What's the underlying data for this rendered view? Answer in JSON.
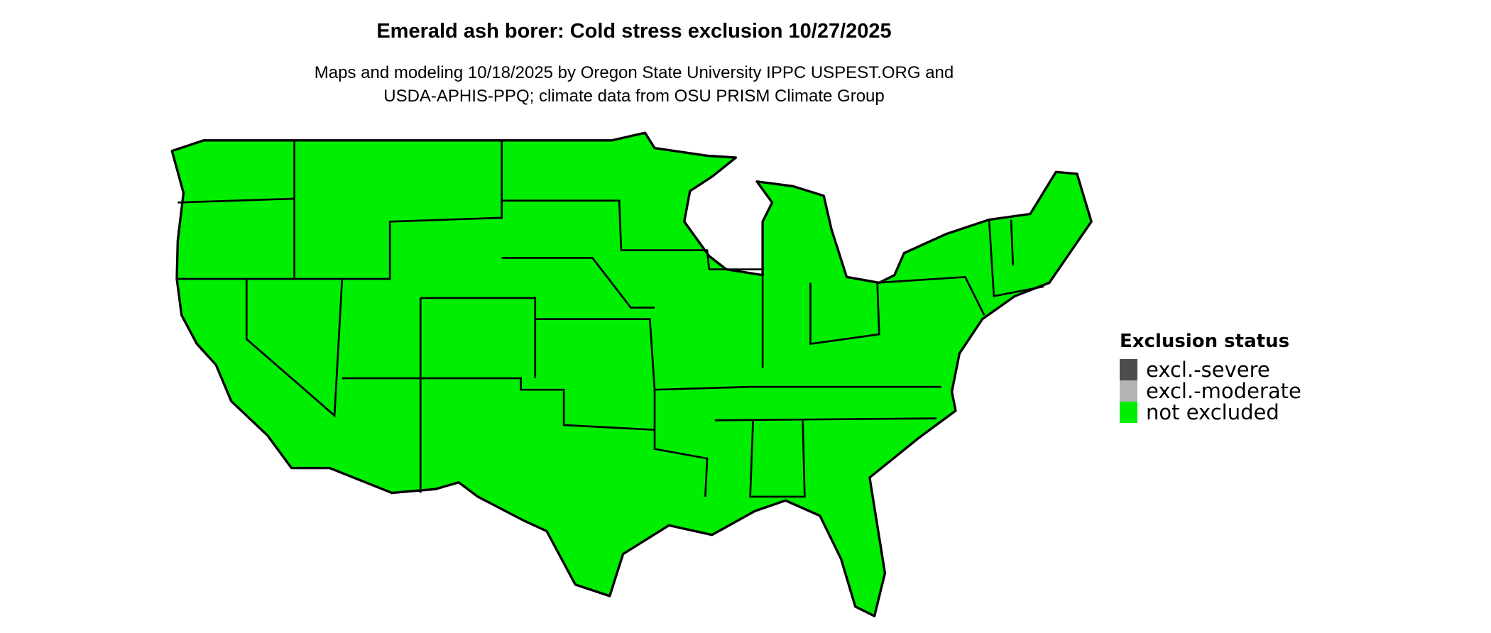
{
  "title": "Emerald ash borer: Cold stress exclusion 10/27/2025",
  "subtitle_lines": [
    "Maps and modeling 10/18/2025 by Oregon State University IPPC USPEST.ORG and",
    "USDA-APHIS-PPQ; climate data from OSU PRISM Climate Group"
  ],
  "map": {
    "region": "Contiguous United States",
    "fill_status": "not excluded",
    "fill_color": "#00EE00",
    "border_color": "#000000"
  },
  "legend": {
    "title": "Exclusion status",
    "items": [
      {
        "label": "excl.-severe",
        "color": "#4D4D4D"
      },
      {
        "label": "excl.-moderate",
        "color": "#B3B3B3"
      },
      {
        "label": "not excluded",
        "color": "#00EE00"
      }
    ]
  }
}
